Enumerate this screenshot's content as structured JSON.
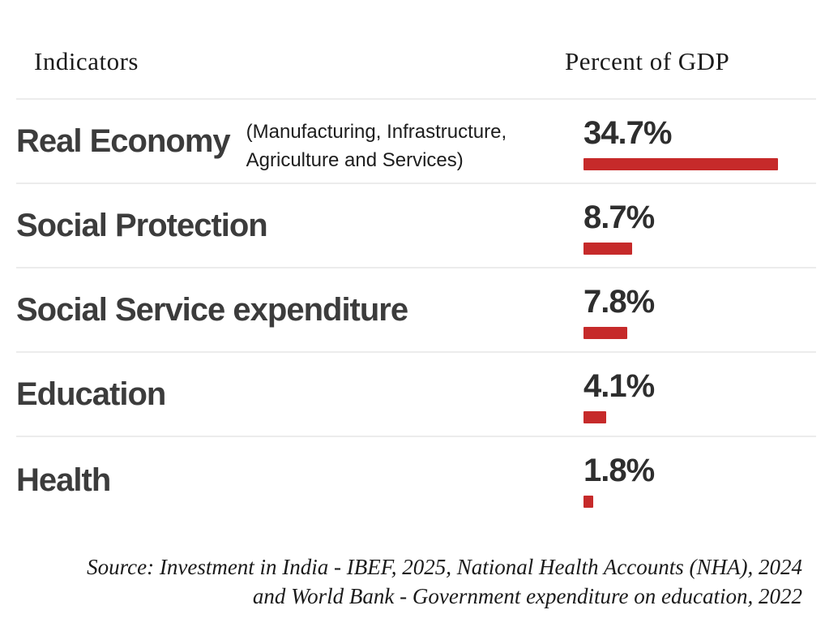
{
  "header": {
    "indicators_label": "Indicators",
    "percent_label": "Percent of GDP"
  },
  "chart_data": {
    "type": "bar",
    "orientation": "horizontal",
    "title": "",
    "xlabel": "Percent of GDP",
    "ylabel": "Indicators",
    "categories": [
      "Real Economy",
      "Social Protection",
      "Social Service expenditure",
      "Education",
      "Health"
    ],
    "values": [
      34.7,
      8.7,
      7.8,
      4.1,
      1.8
    ],
    "value_labels": [
      "34.7%",
      "8.7%",
      "7.8%",
      "4.1%",
      "1.8%"
    ],
    "annotations": [
      "(Manufacturing, Infrastructure, Agriculture and Services)",
      "",
      "",
      "",
      ""
    ],
    "xlim": [
      0,
      34.7
    ],
    "grid": false,
    "legend": false,
    "bar_color": "#c62a2a"
  },
  "rows": [
    {
      "label": "Real Economy",
      "description": "(Manufacturing, Infrastructure, Agriculture and Services)",
      "value": 34.7,
      "value_label": "34.7%"
    },
    {
      "label": "Social Protection",
      "description": "",
      "value": 8.7,
      "value_label": "8.7%"
    },
    {
      "label": "Social Service expenditure",
      "description": "",
      "value": 7.8,
      "value_label": "7.8%"
    },
    {
      "label": "Education",
      "description": "",
      "value": 4.1,
      "value_label": "4.1%"
    },
    {
      "label": "Health",
      "description": "",
      "value": 1.8,
      "value_label": "1.8%"
    }
  ],
  "footer": {
    "line1": "Source: Investment in India - IBEF, 2025, National Health Accounts (NHA), 2024",
    "line2": "and World Bank - Government expenditure on education, 2022"
  },
  "colors": {
    "bar": "#c62a2a",
    "divider": "#ececec",
    "label_text": "#3c3c3c",
    "value_text": "#2e2e2e",
    "header_text": "#1b1b1b",
    "background": "#ffffff"
  }
}
